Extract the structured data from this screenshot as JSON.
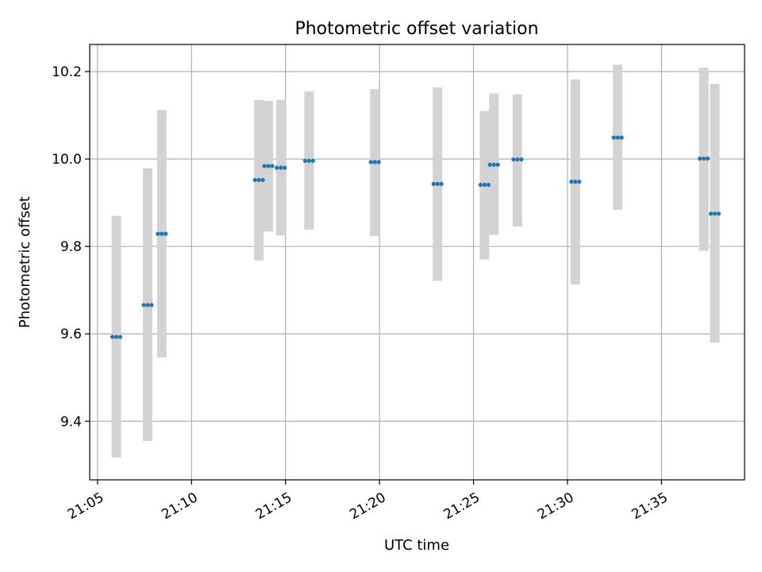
{
  "chart_data": {
    "type": "scatter",
    "title": "Photometric offset variation",
    "xlabel": "UTC time",
    "ylabel": "Photometric offset",
    "xlim": [
      "21:04:35",
      "21:39:25"
    ],
    "ylim": [
      9.266,
      10.262
    ],
    "xticks": [
      "21:05",
      "21:10",
      "21:15",
      "21:20",
      "21:25",
      "21:30",
      "21:35"
    ],
    "yticks": [
      "9.4",
      "9.6",
      "9.8",
      "10.0",
      "10.2"
    ],
    "grid": true,
    "colors": {
      "point": "#1f77b4",
      "errorbar": "#d3d3d3",
      "grid": "#b0b0b0"
    },
    "series": [
      {
        "points": [
          {
            "t": "21:06:00",
            "y": 9.593,
            "ylo": 9.317,
            "yhi": 9.87
          },
          {
            "t": "21:07:40",
            "y": 9.666,
            "ylo": 9.355,
            "yhi": 9.979
          },
          {
            "t": "21:08:25",
            "y": 9.829,
            "ylo": 9.546,
            "yhi": 10.112
          },
          {
            "t": "21:13:35",
            "y": 9.952,
            "ylo": 9.768,
            "yhi": 10.135
          },
          {
            "t": "21:14:05",
            "y": 9.984,
            "ylo": 9.834,
            "yhi": 10.133
          },
          {
            "t": "21:14:45",
            "y": 9.98,
            "ylo": 9.825,
            "yhi": 10.135
          },
          {
            "t": "21:16:15",
            "y": 9.996,
            "ylo": 9.838,
            "yhi": 10.155
          },
          {
            "t": "21:19:45",
            "y": 9.993,
            "ylo": 9.824,
            "yhi": 10.16
          },
          {
            "t": "21:23:05",
            "y": 9.943,
            "ylo": 9.721,
            "yhi": 10.164
          },
          {
            "t": "21:25:35",
            "y": 9.941,
            "ylo": 9.77,
            "yhi": 10.11
          },
          {
            "t": "21:26:05",
            "y": 9.987,
            "ylo": 9.826,
            "yhi": 10.15
          },
          {
            "t": "21:27:20",
            "y": 9.999,
            "ylo": 9.846,
            "yhi": 10.148
          },
          {
            "t": "21:30:25",
            "y": 9.948,
            "ylo": 9.713,
            "yhi": 10.182
          },
          {
            "t": "21:32:40",
            "y": 10.049,
            "ylo": 9.884,
            "yhi": 10.216
          },
          {
            "t": "21:37:15",
            "y": 10.001,
            "ylo": 9.79,
            "yhi": 10.209
          },
          {
            "t": "21:37:50",
            "y": 9.875,
            "ylo": 9.58,
            "yhi": 10.172
          }
        ]
      }
    ]
  }
}
